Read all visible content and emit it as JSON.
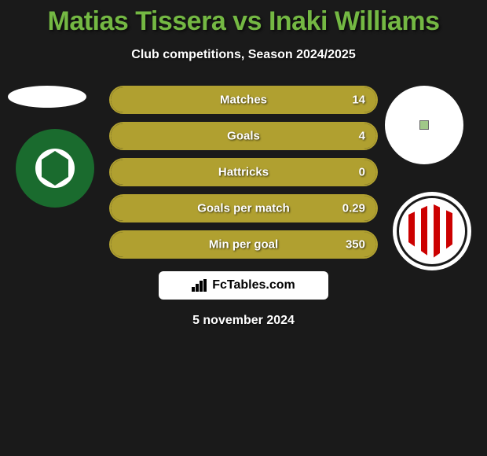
{
  "title": "Matias Tissera vs Inaki Williams",
  "subtitle": "Club competitions, Season 2024/2025",
  "date": "5 november 2024",
  "watermark": "FcTables.com",
  "colors": {
    "background": "#1a1a1a",
    "title_color": "#74b843",
    "bar_color": "#b0a030",
    "text_color": "#ffffff"
  },
  "player_left": {
    "name": "Matias Tissera",
    "club": "Ludogorets",
    "club_primary": "#1a6b2e",
    "club_secondary": "#ffffff"
  },
  "player_right": {
    "name": "Inaki Williams",
    "club": "Athletic Bilbao",
    "club_primary": "#cc0000",
    "club_secondary": "#ffffff"
  },
  "stats": [
    {
      "label": "Matches",
      "value": "14",
      "fill_pct": 100
    },
    {
      "label": "Goals",
      "value": "4",
      "fill_pct": 100
    },
    {
      "label": "Hattricks",
      "value": "0",
      "fill_pct": 100
    },
    {
      "label": "Goals per match",
      "value": "0.29",
      "fill_pct": 100
    },
    {
      "label": "Min per goal",
      "value": "350",
      "fill_pct": 100
    }
  ]
}
